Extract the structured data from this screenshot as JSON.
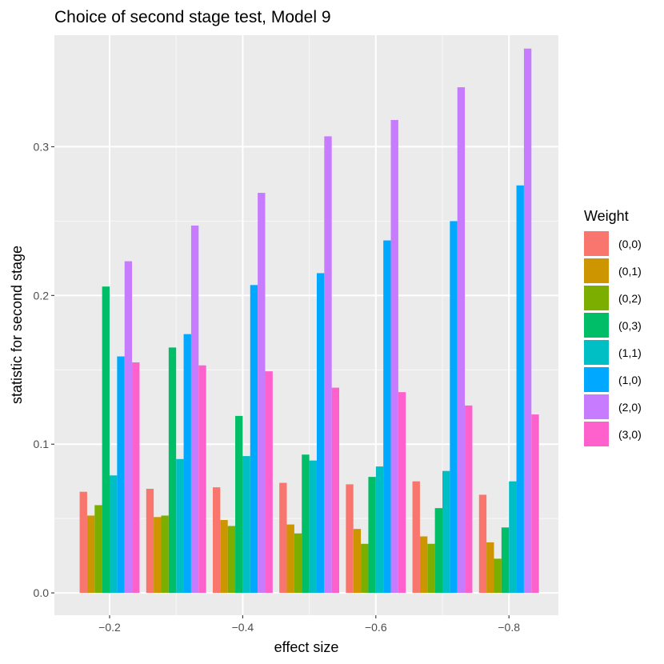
{
  "chart_data": {
    "type": "bar",
    "title": "Choice of second stage test, Model 9",
    "xlabel": "effect size",
    "ylabel": "statistic for second stage",
    "categories": [
      "−0.2",
      "−0.3",
      "−0.4",
      "−0.5",
      "−0.6",
      "−0.7",
      "−0.8"
    ],
    "x_tick_labels": [
      "−0.2",
      "−0.4",
      "−0.6",
      "−0.8"
    ],
    "ylim": [
      -0.015,
      0.375
    ],
    "y_ticks": [
      0.0,
      0.1,
      0.2,
      0.3
    ],
    "y_tick_labels": [
      "0.0",
      "0.1",
      "0.2",
      "0.3"
    ],
    "grid": true,
    "legend": {
      "title": "Weight",
      "position": "right"
    },
    "series": [
      {
        "name": "(0,0)",
        "color": "#F8766D",
        "values": [
          0.068,
          0.07,
          0.071,
          0.074,
          0.073,
          0.075,
          0.066
        ]
      },
      {
        "name": "(0,1)",
        "color": "#CD9600",
        "values": [
          0.052,
          0.051,
          0.049,
          0.046,
          0.043,
          0.038,
          0.034
        ]
      },
      {
        "name": "(0,2)",
        "color": "#7CAE00",
        "values": [
          0.059,
          0.052,
          0.045,
          0.04,
          0.033,
          0.033,
          0.023
        ]
      },
      {
        "name": "(0,3)",
        "color": "#00BE67",
        "values": [
          0.206,
          0.165,
          0.119,
          0.093,
          0.078,
          0.057,
          0.044
        ]
      },
      {
        "name": "(1,1)",
        "color": "#00BFC4",
        "values": [
          0.079,
          0.09,
          0.092,
          0.089,
          0.085,
          0.082,
          0.075
        ]
      },
      {
        "name": "(1,0)",
        "color": "#00A9FF",
        "values": [
          0.159,
          0.174,
          0.207,
          0.215,
          0.237,
          0.25,
          0.274
        ]
      },
      {
        "name": "(2,0)",
        "color": "#C77CFF",
        "values": [
          0.223,
          0.247,
          0.269,
          0.307,
          0.318,
          0.34,
          0.366
        ]
      },
      {
        "name": "(3,0)",
        "color": "#FF61CC",
        "values": [
          0.155,
          0.153,
          0.149,
          0.138,
          0.135,
          0.126,
          0.12
        ]
      }
    ]
  }
}
